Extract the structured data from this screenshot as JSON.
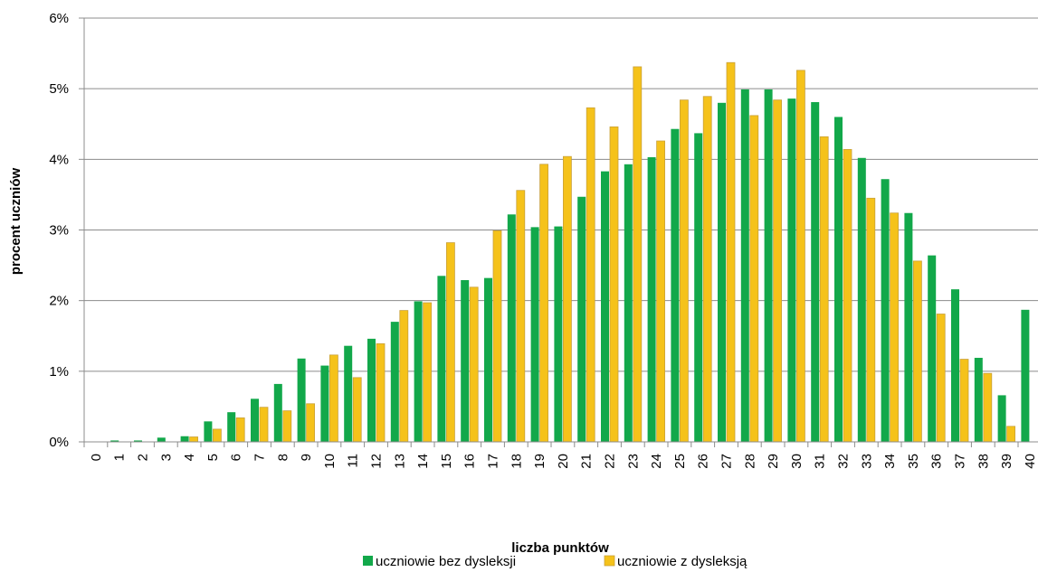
{
  "chart_data": {
    "type": "bar",
    "xlabel": "liczba punktów",
    "ylabel": "procent  uczniów",
    "ylim": [
      0,
      6
    ],
    "yticks": [
      "0%",
      "1%",
      "2%",
      "3%",
      "4%",
      "5%",
      "6%"
    ],
    "categories": [
      "0",
      "1",
      "2",
      "3",
      "4",
      "5",
      "6",
      "7",
      "8",
      "9",
      "10",
      "11",
      "12",
      "13",
      "14",
      "15",
      "16",
      "17",
      "18",
      "19",
      "20",
      "21",
      "22",
      "23",
      "24",
      "25",
      "26",
      "27",
      "28",
      "29",
      "30",
      "31",
      "32",
      "33",
      "34",
      "35",
      "36",
      "37",
      "38",
      "39",
      "40"
    ],
    "grid": true,
    "legend_position": "bottom",
    "series": [
      {
        "name": "uczniowie bez dysleksji",
        "color": "#12a84a",
        "values": [
          0.0,
          0.02,
          0.02,
          0.06,
          0.08,
          0.29,
          0.42,
          0.61,
          0.82,
          1.18,
          1.08,
          1.36,
          1.46,
          1.7,
          1.99,
          2.35,
          2.29,
          2.32,
          3.22,
          3.04,
          3.05,
          3.47,
          3.83,
          3.93,
          4.03,
          4.43,
          4.37,
          4.8,
          4.99,
          4.99,
          4.86,
          4.81,
          4.6,
          4.02,
          3.72,
          3.24,
          2.64,
          2.16,
          1.19,
          0.66,
          1.87
        ]
      },
      {
        "name": "uczniowie z dysleksją",
        "color": "#f5c21a",
        "values": [
          0.0,
          0.0,
          0.0,
          0.0,
          0.07,
          0.18,
          0.34,
          0.49,
          0.44,
          0.54,
          1.23,
          0.91,
          1.39,
          1.86,
          1.97,
          2.82,
          2.19,
          2.99,
          3.56,
          3.93,
          4.04,
          4.73,
          4.46,
          5.31,
          4.26,
          4.84,
          4.89,
          5.37,
          4.62,
          4.84,
          5.26,
          4.32,
          4.14,
          3.45,
          3.24,
          2.56,
          1.81,
          1.17,
          0.97,
          0.22,
          0.0
        ]
      }
    ]
  }
}
